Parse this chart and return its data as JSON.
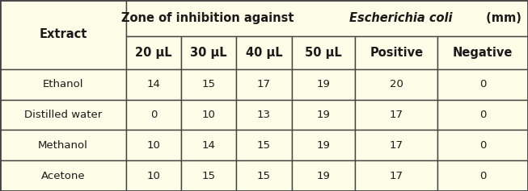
{
  "title_extract": "Extract",
  "header_normal1": "Zone of inhibition against ",
  "header_italic": "Escherichia coli",
  "header_normal2": " (mm)",
  "col_headers": [
    "20 μL",
    "30 μL",
    "40 μL",
    "50 μL",
    "Positive",
    "Negative"
  ],
  "row_labels": [
    "Ethanol",
    "Distilled water",
    "Methanol",
    "Acetone"
  ],
  "table_data": [
    [
      "14",
      "15",
      "17",
      "19",
      "20",
      "0"
    ],
    [
      "0",
      "10",
      "13",
      "19",
      "17",
      "0"
    ],
    [
      "10",
      "14",
      "15",
      "19",
      "17",
      "0"
    ],
    [
      "10",
      "15",
      "15",
      "19",
      "17",
      "0"
    ]
  ],
  "bg_color": "#FEFEE8",
  "border_color": "#444444",
  "text_color": "#1a1a1a",
  "figsize": [
    6.53,
    2.37
  ],
  "dpi": 100,
  "col_widths_raw": [
    1.55,
    0.68,
    0.68,
    0.68,
    0.78,
    1.02,
    1.11
  ],
  "row_heights_raw": [
    1.3,
    1.2,
    1.1,
    1.1,
    1.1,
    1.1
  ]
}
